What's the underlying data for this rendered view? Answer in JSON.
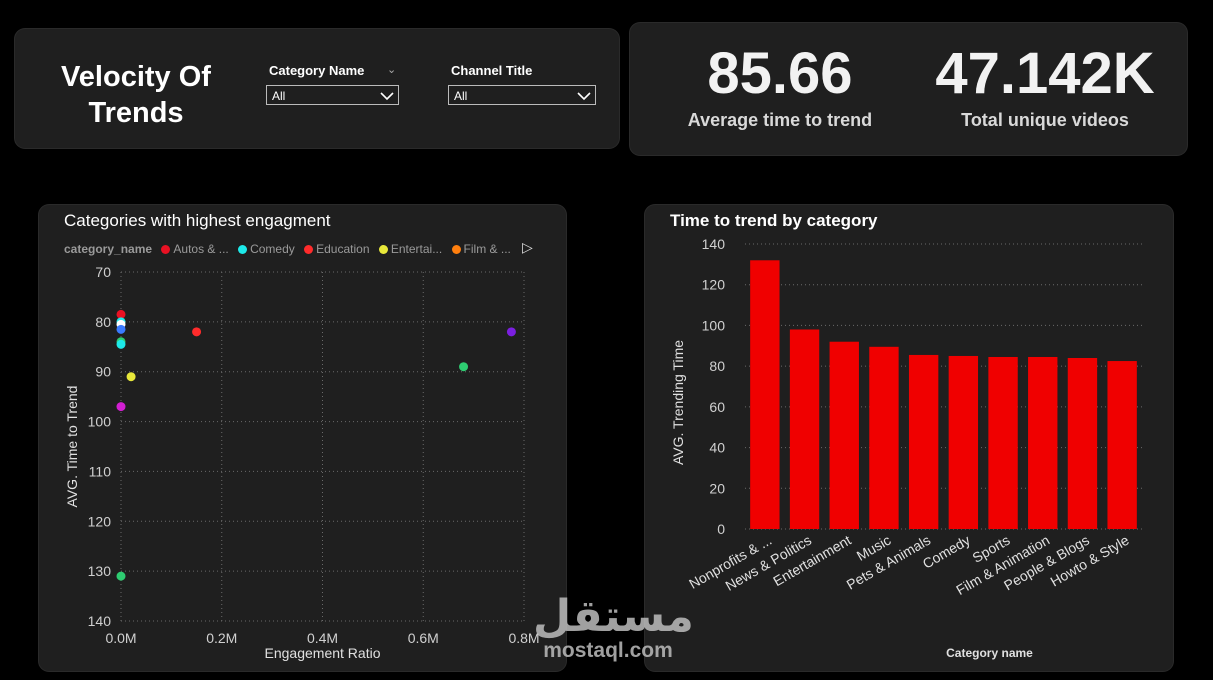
{
  "header": {
    "title": "Velocity Of Trends",
    "slicers": [
      {
        "label": "Category Name",
        "value": "All"
      },
      {
        "label": "Channel Title",
        "value": "All"
      }
    ]
  },
  "kpis": [
    {
      "value": "85.66",
      "label": "Average time to trend"
    },
    {
      "value": "47.142K",
      "label": "Total unique videos"
    }
  ],
  "scatter": {
    "title": "Categories with highest engagment",
    "legend": {
      "title": "category_name",
      "items": [
        {
          "label": "Autos & ...",
          "color": "#e81123"
        },
        {
          "label": "Comedy",
          "color": "#1de9e9"
        },
        {
          "label": "Education",
          "color": "#ff2b2b"
        },
        {
          "label": "Entertai...",
          "color": "#e8e83a"
        },
        {
          "label": "Film & ...",
          "color": "#ff7f0e"
        }
      ]
    }
  },
  "bar": {
    "title": "Time to trend by category"
  },
  "watermark": {
    "arabic": "مستقل",
    "latin": "mostaql.com"
  },
  "chart_data": [
    {
      "type": "scatter",
      "title": "Categories with highest engagment",
      "xlabel": "Engagement Ratio",
      "ylabel": "AVG. Time to Trend",
      "xlim": [
        0,
        800000
      ],
      "ylim": [
        70,
        140
      ],
      "y_reversed": true,
      "x_tick_labels": [
        "0.0M",
        "0.2M",
        "0.4M",
        "0.6M",
        "0.8M"
      ],
      "y_tick_labels": [
        "70",
        "80",
        "90",
        "100",
        "110",
        "120",
        "130",
        "140"
      ],
      "grid": true,
      "legend_position": "top",
      "points": [
        {
          "x": 0,
          "y": 78.5,
          "color": "#e81123"
        },
        {
          "x": 0,
          "y": 80,
          "color": "#1de9e9"
        },
        {
          "x": 0,
          "y": 80.5,
          "color": "#ffffff"
        },
        {
          "x": 0,
          "y": 81.5,
          "color": "#3a7bff"
        },
        {
          "x": 0,
          "y": 84,
          "color": "#2ecc71"
        },
        {
          "x": 0,
          "y": 84.5,
          "color": "#1de9e9"
        },
        {
          "x": 0,
          "y": 97,
          "color": "#d21fd2"
        },
        {
          "x": 0,
          "y": 131,
          "color": "#2ecc71"
        },
        {
          "x": 20000,
          "y": 91,
          "color": "#e8e83a"
        },
        {
          "x": 150000,
          "y": 82,
          "color": "#ff2b2b"
        },
        {
          "x": 680000,
          "y": 89,
          "color": "#2ecc71"
        },
        {
          "x": 775000,
          "y": 82,
          "color": "#7b1fe0"
        }
      ]
    },
    {
      "type": "bar",
      "title": "Time to trend by category",
      "xlabel": "Category name",
      "ylabel": "AVG. Trending Time",
      "ylim": [
        0,
        140
      ],
      "y_tick_labels": [
        "0",
        "20",
        "40",
        "60",
        "80",
        "100",
        "120",
        "140"
      ],
      "grid": true,
      "color": "#f00000",
      "categories": [
        "Nonprofits & ...",
        "News & Politics",
        "Entertainment",
        "Music",
        "Pets & Animals",
        "Comedy",
        "Sports",
        "Film & Animation",
        "People & Blogs",
        "Howto & Style"
      ],
      "values": [
        132,
        98,
        92,
        89.5,
        85.5,
        85,
        84.5,
        84.5,
        84,
        82.5
      ]
    }
  ]
}
